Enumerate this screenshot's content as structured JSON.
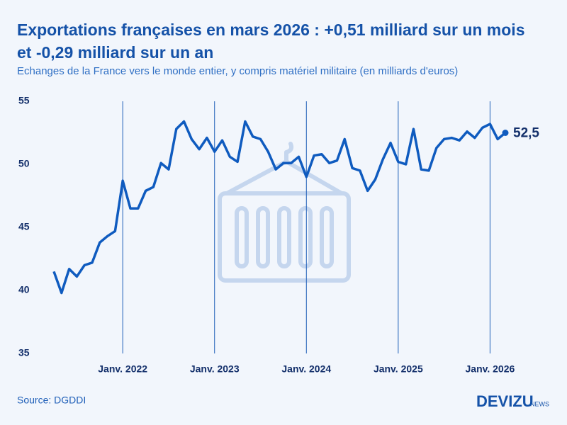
{
  "chart_data": {
    "type": "line",
    "title": "Exportations françaises en mars 2026 : +0,51 milliard sur un mois et -0,29 milliard sur un an",
    "subtitle": "Echanges de la France vers le monde entier, y compris matériel militaire (en milliards d'euros)",
    "source": "Source: DGDDI",
    "brand": "DEVIZU",
    "brand_suffix": "NEWS",
    "x": [
      "2021-04",
      "2021-05",
      "2021-06",
      "2021-07",
      "2021-08",
      "2021-09",
      "2021-10",
      "2021-11",
      "2021-12",
      "2022-01",
      "2022-02",
      "2022-03",
      "2022-04",
      "2022-05",
      "2022-06",
      "2022-07",
      "2022-08",
      "2022-09",
      "2022-10",
      "2022-11",
      "2022-12",
      "2023-01",
      "2023-02",
      "2023-03",
      "2023-04",
      "2023-05",
      "2023-06",
      "2023-07",
      "2023-08",
      "2023-09",
      "2023-10",
      "2023-11",
      "2023-12",
      "2024-01",
      "2024-02",
      "2024-03",
      "2024-04",
      "2024-05",
      "2024-06",
      "2024-07",
      "2024-08",
      "2024-09",
      "2024-10",
      "2024-11",
      "2024-12",
      "2025-01",
      "2025-02",
      "2025-03",
      "2025-04",
      "2025-05",
      "2025-06",
      "2025-07",
      "2025-08",
      "2025-09",
      "2025-10",
      "2025-11",
      "2025-12",
      "2026-01",
      "2026-02",
      "2026-03"
    ],
    "series": [
      {
        "name": "Exportations",
        "color": "#0f5bbf",
        "values": [
          41.5,
          39.8,
          41.7,
          41.1,
          42.0,
          42.2,
          43.8,
          44.3,
          44.7,
          48.7,
          46.5,
          46.5,
          47.9,
          48.2,
          50.1,
          49.6,
          52.8,
          53.4,
          52.0,
          51.2,
          52.1,
          51.0,
          51.9,
          50.6,
          50.2,
          53.4,
          52.2,
          52.0,
          51.0,
          49.6,
          50.1,
          50.1,
          50.6,
          49.0,
          50.7,
          50.8,
          50.1,
          50.3,
          52.0,
          49.7,
          49.5,
          47.9,
          48.8,
          50.4,
          51.7,
          50.2,
          50.0,
          52.8,
          49.6,
          49.5,
          51.3,
          52.0,
          52.1,
          51.9,
          52.6,
          52.1,
          52.9,
          53.2,
          52.0,
          52.5
        ],
        "value_labels": [
          null,
          null,
          null,
          null,
          null,
          null,
          null,
          null,
          null,
          null,
          null,
          null,
          null,
          null,
          null,
          null,
          null,
          null,
          null,
          null,
          null,
          null,
          null,
          null,
          null,
          null,
          null,
          null,
          null,
          null,
          null,
          null,
          null,
          null,
          null,
          null,
          null,
          null,
          null,
          null,
          null,
          null,
          null,
          null,
          null,
          null,
          null,
          null,
          null,
          null,
          null,
          null,
          null,
          null,
          null,
          null,
          null,
          null,
          null,
          "52,5"
        ]
      }
    ],
    "xlim": [
      "2021-04",
      "2026-03"
    ],
    "xticks": [
      {
        "value": "2022-01",
        "label": "Janv. 2022"
      },
      {
        "value": "2023-01",
        "label": "Janv. 2023"
      },
      {
        "value": "2024-01",
        "label": "Janv. 2024"
      },
      {
        "value": "2025-01",
        "label": "Janv. 2025"
      },
      {
        "value": "2026-01",
        "label": "Janv. 2026"
      }
    ],
    "ylim": [
      35,
      55
    ],
    "yticks": [
      35,
      40,
      45,
      50,
      55
    ],
    "grid": true
  }
}
